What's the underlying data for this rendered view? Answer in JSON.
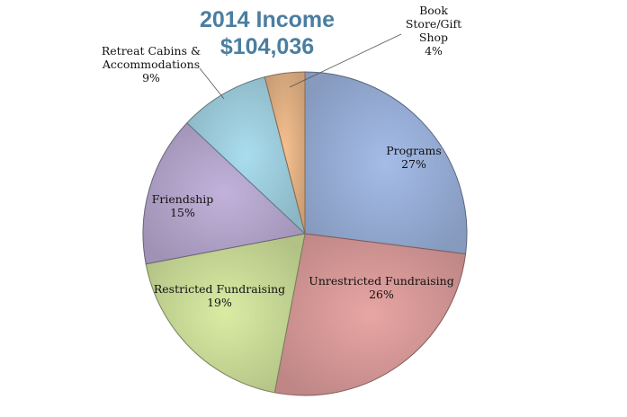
{
  "chart_data": {
    "type": "pie",
    "title": "2014 Income",
    "subtitle": "$104,036",
    "start_angle_deg": 0,
    "direction": "clockwise",
    "slices": [
      {
        "name": "Programs",
        "label_lines": [
          "Programs"
        ],
        "value": 27,
        "value_label": "27%",
        "color": "#a4bce8"
      },
      {
        "name": "Unrestricted Fundraising",
        "label_lines": [
          "Unrestricted Fundraising"
        ],
        "value": 26,
        "value_label": "26%",
        "color": "#e8a5a3"
      },
      {
        "name": "Restricted Fundraising",
        "label_lines": [
          "Restricted Fundraising"
        ],
        "value": 19,
        "value_label": "19%",
        "color": "#d9eca3"
      },
      {
        "name": "Friendship",
        "label_lines": [
          "Friendship"
        ],
        "value": 15,
        "value_label": "15%",
        "color": "#c2b2db"
      },
      {
        "name": "Retreat Cabins & Accommodations",
        "label_lines": [
          "Retreat Cabins &",
          "Accommodations"
        ],
        "value": 9,
        "value_label": "9%",
        "color": "#a9ddee"
      },
      {
        "name": "Book Store/Gift Shop",
        "label_lines": [
          "Book",
          "Store/Gift",
          "Shop"
        ],
        "value": 4,
        "value_label": "4%",
        "color": "#f5c08f"
      }
    ]
  }
}
